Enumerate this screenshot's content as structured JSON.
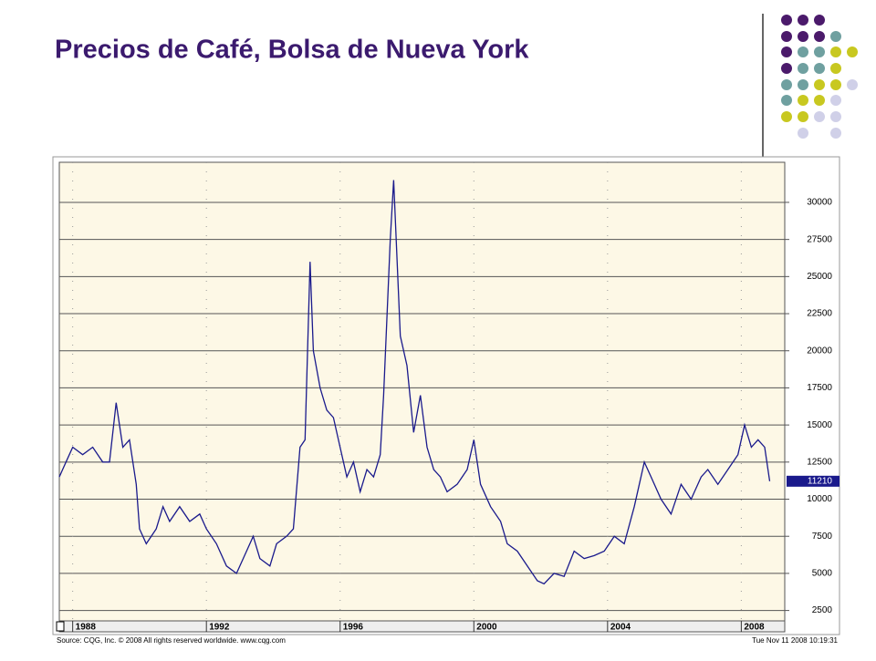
{
  "chart_data": {
    "type": "line",
    "title": "Precios de Café, Bolsa de Nueva York",
    "source": "Source: CQG, Inc. © 2008 All rights reserved worldwide. www.cqg.com",
    "timestamp": "Tue Nov 11 2008 10:19:31",
    "xlim": [
      1987.6,
      2009.3
    ],
    "xticks": [
      1988,
      1992,
      1996,
      2000,
      2004,
      2008
    ],
    "ylim": [
      1800,
      32700
    ],
    "yticks": [
      2500,
      5000,
      7500,
      10000,
      12500,
      15000,
      17500,
      20000,
      22500,
      25000,
      27500,
      30000
    ],
    "grid": true,
    "series": [
      {
        "color": "#1a1a8c",
        "x": [
          1987.6,
          1987.8,
          1988.0,
          1988.3,
          1988.6,
          1988.9,
          1989.1,
          1989.3,
          1989.5,
          1989.7,
          1989.9,
          1990.0,
          1990.2,
          1990.5,
          1990.7,
          1990.9,
          1991.2,
          1991.5,
          1991.8,
          1992.0,
          1992.3,
          1992.6,
          1992.9,
          1993.2,
          1993.4,
          1993.6,
          1993.9,
          1994.1,
          1994.4,
          1994.6,
          1994.8,
          1994.95,
          1995.1,
          1995.2,
          1995.4,
          1995.6,
          1995.8,
          1996.0,
          1996.2,
          1996.4,
          1996.6,
          1996.8,
          1997.0,
          1997.2,
          1997.3,
          1997.5,
          1997.6,
          1997.8,
          1998.0,
          1998.2,
          1998.4,
          1998.6,
          1998.8,
          1999.0,
          1999.2,
          1999.5,
          1999.8,
          2000.0,
          2000.2,
          2000.5,
          2000.8,
          2001.0,
          2001.3,
          2001.6,
          2001.9,
          2002.1,
          2002.4,
          2002.7,
          2003.0,
          2003.3,
          2003.6,
          2003.9,
          2004.2,
          2004.5,
          2004.8,
          2005.1,
          2005.3,
          2005.6,
          2005.9,
          2006.2,
          2006.5,
          2006.8,
          2007.0,
          2007.3,
          2007.6,
          2007.9,
          2008.1,
          2008.3,
          2008.5,
          2008.7,
          2008.85
        ],
        "values": [
          11500,
          12500,
          13500,
          13000,
          13500,
          12500,
          12500,
          16500,
          13500,
          14000,
          11000,
          8000,
          7000,
          8000,
          9500,
          8500,
          9500,
          8500,
          9000,
          8000,
          7000,
          5500,
          5000,
          6500,
          7500,
          6000,
          5500,
          7000,
          7500,
          8000,
          13500,
          14000,
          26000,
          20000,
          17500,
          16000,
          15500,
          13500,
          11500,
          12500,
          10500,
          12000,
          11500,
          13000,
          17000,
          27500,
          31500,
          21000,
          19000,
          14500,
          17000,
          13500,
          12000,
          11500,
          10500,
          11000,
          12000,
          14000,
          11000,
          9500,
          8500,
          7000,
          6500,
          5500,
          4500,
          4300,
          5000,
          4800,
          6500,
          6000,
          6200,
          6500,
          7500,
          7000,
          9500,
          12500,
          11500,
          10000,
          9000,
          11000,
          10000,
          11500,
          12000,
          11000,
          12000,
          13000,
          15000,
          13500,
          14000,
          13500,
          11210
        ]
      }
    ]
  }
}
